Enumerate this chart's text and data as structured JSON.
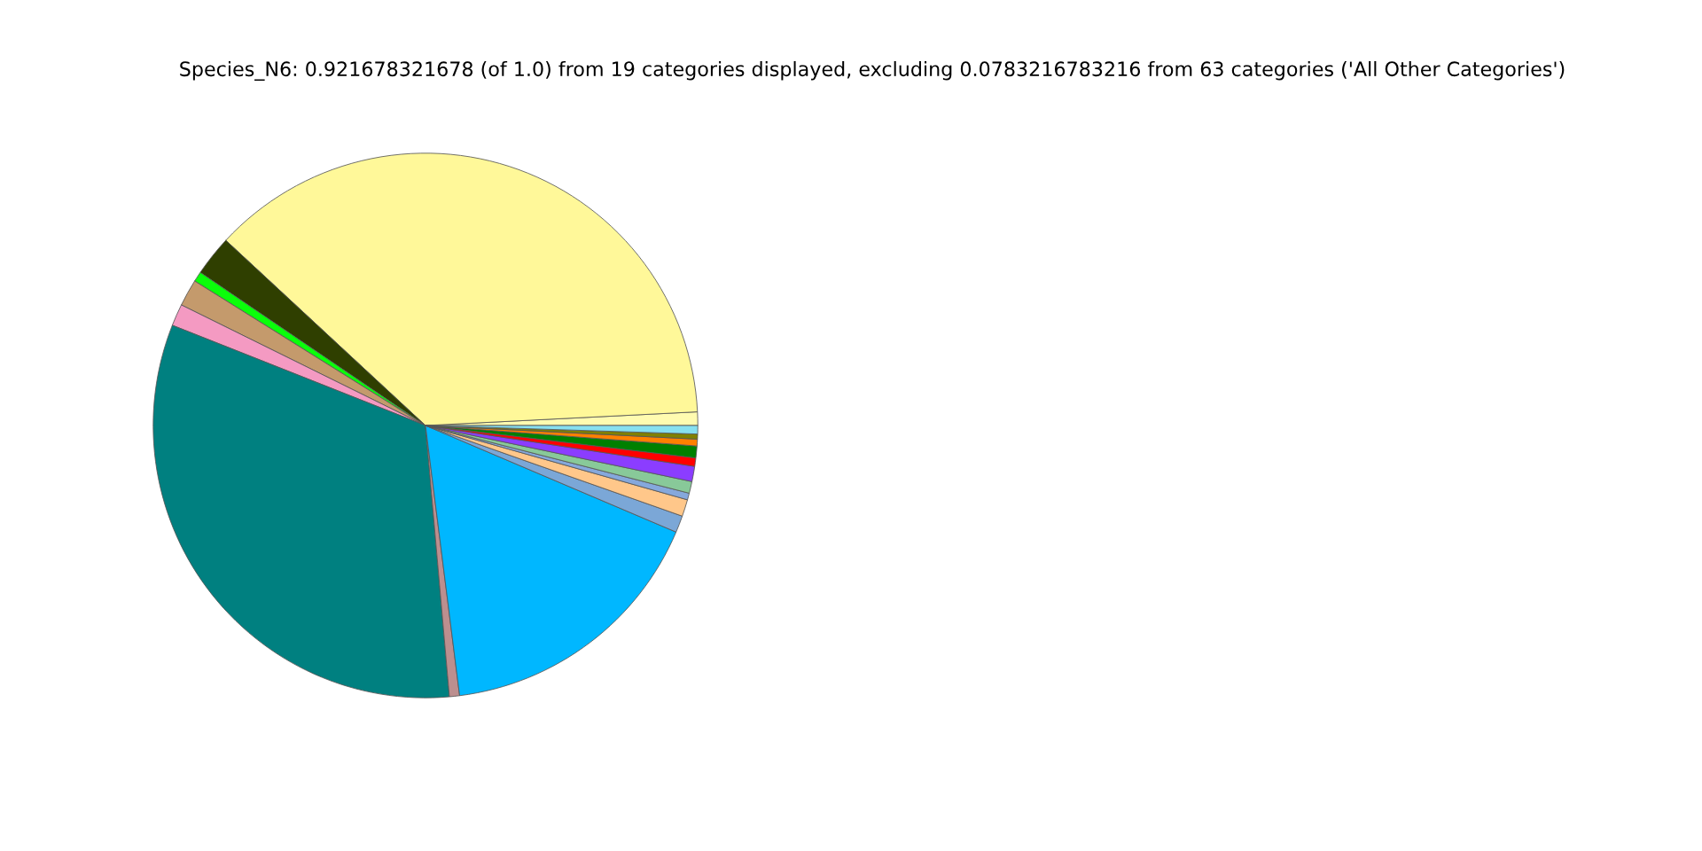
{
  "chart_data": {
    "type": "pie",
    "title": "Species_N6: 0.921678321678 (of 1.0) from 19 categories displayed, excluding 0.0783216783216 from 63 categories ('All Other Categories')",
    "categories": [
      null,
      null,
      null,
      null,
      null,
      null,
      null,
      null,
      null,
      null,
      null,
      null,
      null,
      null,
      null,
      null,
      null,
      null,
      null
    ],
    "values": [
      0.8,
      37.3,
      2.4,
      0.6,
      1.6,
      1.3,
      32.4,
      0.6,
      16.6,
      1.0,
      1.0,
      0.4,
      0.7,
      0.9,
      0.5,
      0.7,
      0.4,
      0.3,
      0.5
    ],
    "colors": [
      "#fffbb0",
      "#fff899",
      "#2f3f00",
      "#0aff0a",
      "#c49a6c",
      "#f49ac2",
      "#008080",
      "#bc8f8f",
      "#00b7ff",
      "#7ba7d7",
      "#ffc78a",
      "#85a8dc",
      "#88c999",
      "#8b3dff",
      "#ff0000",
      "#008000",
      "#ff8000",
      "#808000",
      "#87e0f0"
    ],
    "legend": false
  }
}
